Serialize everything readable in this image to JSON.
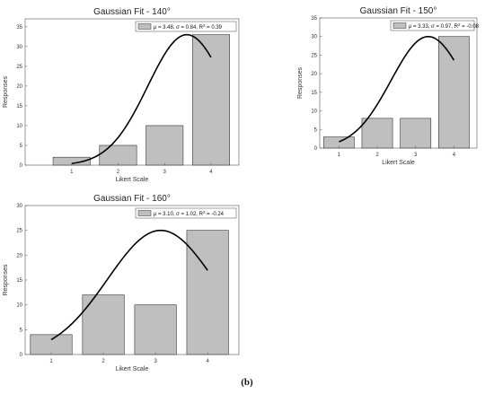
{
  "caption": "(b)",
  "chart_data": [
    {
      "type": "bar",
      "title": "Gaussian Fit - 140°",
      "xlabel": "Likert Scale",
      "ylabel": "Responses",
      "categories": [
        "1",
        "2",
        "3",
        "4"
      ],
      "values": [
        2,
        5,
        10,
        33
      ],
      "xlim": [
        0,
        4.6
      ],
      "ylim": [
        0,
        37
      ],
      "yticks": [
        0,
        5,
        10,
        15,
        20,
        25,
        30,
        35
      ],
      "legend": "$\\mu$ = 3.48, $\\sigma$ = 0.84, R$^2$ = 0.39",
      "legend_position": "top-right",
      "bar_color": "#bfbfbf",
      "fit": {
        "amplitude": 33,
        "mean": 3.48,
        "sigma": 0.84,
        "x_range": [
          1,
          4
        ]
      }
    },
    {
      "type": "bar",
      "title": "Gaussian Fit - 150°",
      "xlabel": "Likert Scale",
      "ylabel": "Responses",
      "categories": [
        "1",
        "2",
        "3",
        "4"
      ],
      "values": [
        3,
        8,
        8,
        30
      ],
      "xlim": [
        0.5,
        4.6
      ],
      "ylim": [
        0,
        35
      ],
      "yticks": [
        0,
        5,
        10,
        15,
        20,
        25,
        30,
        35
      ],
      "legend": "$\\mu$ = 3.33, $\\sigma$ = 0.97, R$^2$ = -0.08",
      "legend_position": "top-right",
      "bar_color": "#bfbfbf",
      "fit": {
        "amplitude": 30,
        "mean": 3.33,
        "sigma": 0.97,
        "x_range": [
          1,
          4
        ]
      }
    },
    {
      "type": "bar",
      "title": "Gaussian Fit - 160°",
      "xlabel": "Likert Scale",
      "ylabel": "Responses",
      "categories": [
        "1",
        "2",
        "3",
        "4"
      ],
      "values": [
        4,
        12,
        10,
        25
      ],
      "xlim": [
        0.5,
        4.6
      ],
      "ylim": [
        0,
        30
      ],
      "yticks": [
        0,
        5,
        10,
        15,
        20,
        25,
        30
      ],
      "legend": "$\\mu$ = 3.10, $\\sigma$ = 1.02, R$^2$ = -0.24",
      "legend_position": "top-right",
      "bar_color": "#bfbfbf",
      "fit": {
        "amplitude": 25,
        "mean": 3.1,
        "sigma": 1.02,
        "x_range": [
          1,
          4
        ]
      }
    }
  ]
}
